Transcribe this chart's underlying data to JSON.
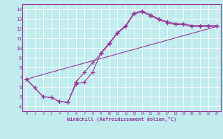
{
  "xlabel": "Windchill (Refroidissement éolien,°C)",
  "bg_color": "#c0ecee",
  "line_color": "#993399",
  "grid_color": "#ffffff",
  "xlim": [
    -0.5,
    23.5
  ],
  "ylim": [
    3.5,
    14.5
  ],
  "xticks": [
    0,
    1,
    2,
    3,
    4,
    5,
    6,
    7,
    8,
    9,
    10,
    11,
    12,
    13,
    14,
    15,
    16,
    17,
    18,
    19,
    20,
    21,
    22,
    23
  ],
  "yticks": [
    4,
    5,
    6,
    7,
    8,
    9,
    10,
    11,
    12,
    13,
    14
  ],
  "line1_x": [
    0,
    1,
    2,
    3,
    4,
    5,
    6,
    7,
    8,
    9,
    10,
    11,
    12,
    13,
    14,
    15,
    16,
    17,
    18,
    19,
    20,
    21,
    22,
    23
  ],
  "line1_y": [
    6.8,
    5.9,
    5.0,
    4.9,
    4.5,
    4.4,
    6.5,
    7.5,
    8.5,
    9.4,
    10.4,
    11.5,
    12.2,
    13.5,
    13.7,
    13.3,
    12.9,
    12.6,
    12.4,
    12.4,
    12.2,
    12.2,
    12.2,
    12.2
  ],
  "line2_x": [
    0,
    1,
    2,
    3,
    4,
    5,
    6,
    7,
    8,
    9,
    10,
    11,
    12,
    13,
    14,
    15,
    16,
    17,
    18,
    19,
    20,
    21,
    22,
    23
  ],
  "line2_y": [
    6.8,
    5.9,
    5.0,
    4.9,
    4.5,
    4.4,
    6.3,
    6.5,
    7.5,
    9.5,
    10.5,
    11.6,
    12.3,
    13.6,
    13.8,
    13.4,
    13.0,
    12.7,
    12.5,
    12.5,
    12.3,
    12.3,
    12.3,
    12.3
  ],
  "line3_x": [
    0,
    23
  ],
  "line3_y": [
    6.8,
    12.2
  ]
}
